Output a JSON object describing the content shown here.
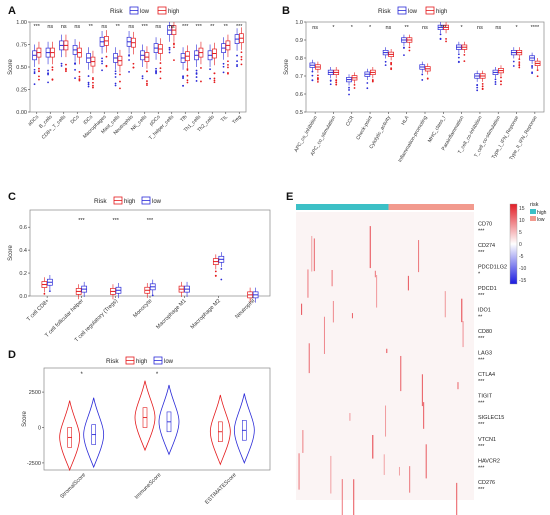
{
  "colors": {
    "high": "#e41a1c",
    "low": "#2b2bd8",
    "risk_high": "#3cc0c6",
    "risk_low": "#f29a8e",
    "heat_hi": "#e21d26",
    "heat_mid": "#ffffff",
    "heat_lo": "#1a1ae0"
  },
  "chart_data": [
    {
      "panel": "A",
      "type": "box",
      "legend_title": "Risk",
      "legend": [
        "low",
        "high"
      ],
      "ylabel": "Score",
      "ylim": [
        0.0,
        1.0
      ],
      "yticks": [
        "0.00",
        "0.25",
        "0.50",
        "0.75",
        "1.00"
      ],
      "categories": [
        "aDCs",
        "B_cells",
        "CD8+_T_cells",
        "DCs",
        "iDCs",
        "Macrophages",
        "Mast_cells",
        "Neutrophils",
        "NK_cells",
        "pDCs",
        "T_helper_cells",
        "Tfh",
        "Th1_cells",
        "Th2_cells",
        "TIL",
        "Treg"
      ],
      "sig": [
        "***",
        "ns",
        "ns",
        "ns",
        "**",
        "ns",
        "**",
        "ns",
        "***",
        "ns",
        "ns",
        "***",
        "***",
        "**",
        "**",
        "***"
      ],
      "series": [
        {
          "name": "low",
          "median": [
            0.63,
            0.66,
            0.74,
            0.69,
            0.6,
            0.78,
            0.6,
            0.78,
            0.63,
            0.71,
            0.91,
            0.6,
            0.63,
            0.63,
            0.71,
            0.81
          ]
        },
        {
          "name": "high",
          "median": [
            0.66,
            0.66,
            0.74,
            0.66,
            0.56,
            0.79,
            0.57,
            0.77,
            0.61,
            0.7,
            0.91,
            0.62,
            0.66,
            0.65,
            0.74,
            0.82
          ]
        }
      ]
    },
    {
      "panel": "B",
      "type": "box",
      "legend_title": "Risk",
      "legend": [
        "low",
        "high"
      ],
      "ylabel": "Score",
      "ylim": [
        0.5,
        1.0
      ],
      "yticks": [
        "0.5",
        "0.6",
        "0.7",
        "0.8",
        "0.9",
        "1.0"
      ],
      "categories": [
        "APC_co_inhibition",
        "APC_co_stimulation",
        "CCR",
        "Check-point",
        "Cytolytic_activity",
        "HLA",
        "Inflammation-promoting",
        "MHC_class_I",
        "Parainflammation",
        "T_cell_co-inhibition",
        "T_cell_co-stimulation",
        "Type_I_IFN_Reponse",
        "Type_II_IFN_Reponse"
      ],
      "sig": [
        "ns",
        "*",
        "*",
        "*",
        "ns",
        "**",
        "ns",
        "***",
        "*",
        "ns",
        "ns",
        "*",
        "****"
      ],
      "series": [
        {
          "name": "low",
          "median": [
            0.76,
            0.72,
            0.68,
            0.71,
            0.83,
            0.9,
            0.75,
            0.97,
            0.86,
            0.7,
            0.72,
            0.83,
            0.8
          ]
        },
        {
          "name": "high",
          "median": [
            0.75,
            0.72,
            0.69,
            0.72,
            0.82,
            0.9,
            0.74,
            0.97,
            0.86,
            0.7,
            0.73,
            0.83,
            0.77
          ]
        }
      ]
    },
    {
      "panel": "C",
      "type": "box",
      "legend_title": "Risk",
      "legend": [
        "high",
        "low"
      ],
      "ylabel": "Score",
      "ylim": [
        0.0,
        0.75
      ],
      "yticks": [
        "0.0",
        "0.2",
        "0.4",
        "0.6"
      ],
      "categories": [
        "T cell CD8+",
        "T cell follicular helper",
        "T cell regulatory (Tregs)",
        "Monocyte",
        "Macrophage M1",
        "Macrophage M2",
        "Neutrophil"
      ],
      "sig": [
        "",
        "***",
        "***",
        "***",
        "",
        "",
        ""
      ],
      "series": [
        {
          "name": "high",
          "median": [
            0.1,
            0.04,
            0.04,
            0.05,
            0.06,
            0.3,
            0.01
          ]
        },
        {
          "name": "low",
          "median": [
            0.12,
            0.06,
            0.05,
            0.08,
            0.06,
            0.32,
            0.01
          ]
        }
      ]
    },
    {
      "panel": "D",
      "type": "violin",
      "legend_title": "Risk",
      "legend": [
        "high",
        "low"
      ],
      "ylabel": "Score",
      "ylim": [
        -3000,
        4200
      ],
      "yticks": [
        "-2500",
        "0",
        "2500"
      ],
      "categories": [
        "StromalScore",
        "ImmuneScore",
        "ESTIMATEScore"
      ],
      "sig": [
        "*",
        "*",
        ""
      ],
      "series": [
        {
          "name": "high",
          "median": [
            -700,
            700,
            -300
          ]
        },
        {
          "name": "low",
          "median": [
            -500,
            400,
            -200
          ]
        }
      ]
    },
    {
      "panel": "E",
      "type": "heatmap",
      "annotation_title": "risk",
      "annotation_legend": [
        "high",
        "low"
      ],
      "colorbar_ticks": [
        "15",
        "10",
        "5",
        "0",
        "-5",
        "-10",
        "-15"
      ],
      "rows": [
        {
          "gene": "CD70",
          "sig": "***"
        },
        {
          "gene": "CD274",
          "sig": "***"
        },
        {
          "gene": "PDCD1LG2",
          "sig": "*"
        },
        {
          "gene": "PDCD1",
          "sig": "***"
        },
        {
          "gene": "IDO1",
          "sig": "**"
        },
        {
          "gene": "CD80",
          "sig": "***"
        },
        {
          "gene": "LAG3",
          "sig": "***"
        },
        {
          "gene": "CTLA4",
          "sig": "***"
        },
        {
          "gene": "TIGIT",
          "sig": "***"
        },
        {
          "gene": "SIGLEC15",
          "sig": "***"
        },
        {
          "gene": "VTCN1",
          "sig": "***"
        },
        {
          "gene": "HAVCR2",
          "sig": "***"
        },
        {
          "gene": "CD276",
          "sig": "***"
        }
      ]
    }
  ]
}
